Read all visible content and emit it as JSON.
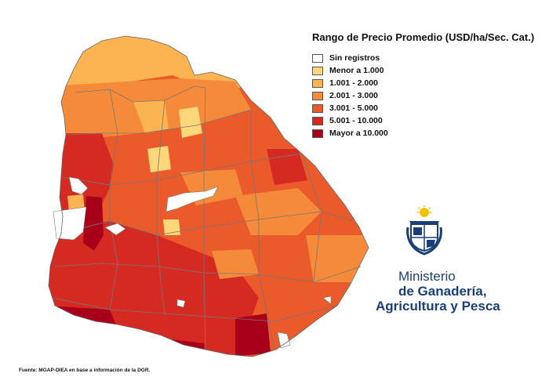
{
  "legend": {
    "title": "Rango de Precio Promedio (USD/ha/Sec. Cat.)",
    "items": [
      {
        "label": "Sin registros",
        "color": "#ffffff"
      },
      {
        "label": "Menor a 1.000",
        "color": "#fdd77a"
      },
      {
        "label": "1.001 - 2.000",
        "color": "#fbb451"
      },
      {
        "label": "2.001 - 3.000",
        "color": "#f58b3a"
      },
      {
        "label": "3.001 - 5.000",
        "color": "#ea5a2a"
      },
      {
        "label": "5.001 - 10.000",
        "color": "#d42a22"
      },
      {
        "label": "Mayor a 10.000",
        "color": "#a8001a"
      }
    ]
  },
  "logo": {
    "line1": "Ministerio",
    "line2": "de Ganadería,",
    "line3": "Agricultura y Pesca",
    "color": "#1a3f78",
    "sun_color": "#f3c200"
  },
  "source": "Fuente: MGAP-DIEA en base a información de la DGR.",
  "map": {
    "border_color": "#777777",
    "regions": [
      {
        "zone": "north",
        "category": "1.001 - 2.000"
      },
      {
        "zone": "north-centre",
        "category": "2.001 - 3.000"
      },
      {
        "zone": "centre",
        "category": "3.001 - 5.000"
      },
      {
        "zone": "west",
        "category": "5.001 - 10.000"
      },
      {
        "zone": "south-west coast",
        "category": "Mayor a 10.000"
      },
      {
        "zone": "east",
        "category": "3.001 - 5.000"
      },
      {
        "zone": "south",
        "category": "5.001 - 10.000"
      }
    ]
  }
}
